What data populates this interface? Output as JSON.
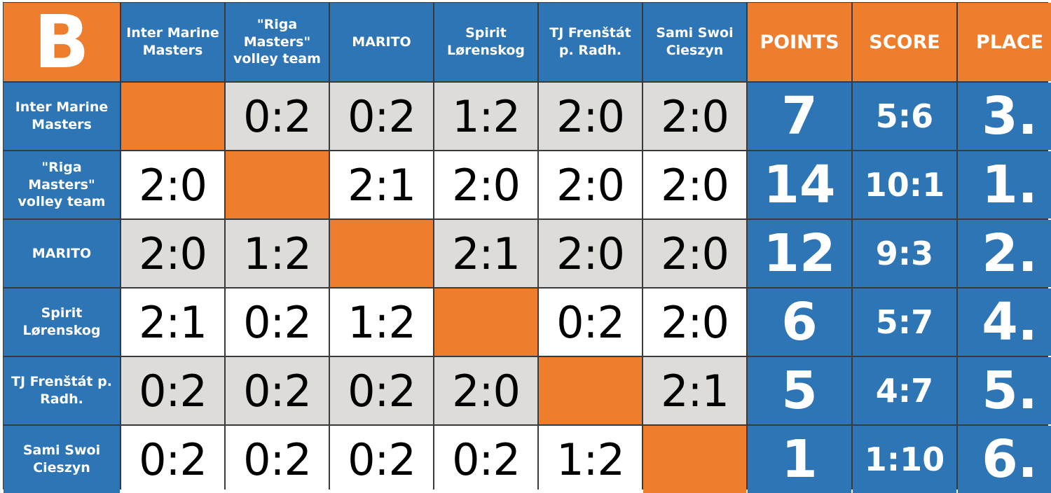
{
  "group": "B",
  "teams": [
    "Inter Marine Masters",
    "\"Riga Masters\" volley team",
    "MARITO",
    "Spirit Lørenskog",
    "TJ Frenštát p. Radh.",
    "Sami Swoi Cieszyn"
  ],
  "header_columns": [
    "Inter Marine Masters",
    "\"Riga Masters\" volley team",
    "MARITO",
    "Spirit Lørenskog",
    "TJ Frenštát p. Radh.",
    "Sami Swoi Cieszyn"
  ],
  "stat_headers": {
    "points": "POINTS",
    "score": "SCORE",
    "place": "PLACE"
  },
  "rows": [
    {
      "team": "Inter Marine Masters",
      "results": [
        "",
        "0:2",
        "0:2",
        "1:2",
        "2:0",
        "2:0"
      ],
      "points": "7",
      "score": "5:6",
      "place": "3."
    },
    {
      "team": "\"Riga Masters\" volley team",
      "results": [
        "2:0",
        "",
        "2:1",
        "2:0",
        "2:0",
        "2:0"
      ],
      "points": "14",
      "score": "10:1",
      "place": "1."
    },
    {
      "team": "MARITO",
      "results": [
        "2:0",
        "1:2",
        "",
        "2:1",
        "2:0",
        "2:0"
      ],
      "points": "12",
      "score": "9:3",
      "place": "2."
    },
    {
      "team": "Spirit Lørenskog",
      "results": [
        "2:1",
        "0:2",
        "1:2",
        "",
        "0:2",
        "2:0"
      ],
      "points": "6",
      "score": "5:7",
      "place": "4."
    },
    {
      "team": "TJ Frenštát p. Radh.",
      "results": [
        "0:2",
        "0:2",
        "0:2",
        "2:0",
        "",
        "2:1"
      ],
      "points": "5",
      "score": "4:7",
      "place": "5."
    },
    {
      "team": "Sami Swoi Cieszyn",
      "results": [
        "0:2",
        "0:2",
        "0:2",
        "0:2",
        "1:2",
        ""
      ],
      "points": "1",
      "score": "1:10",
      "place": "6."
    }
  ],
  "colors": {
    "blue": "#2e75b6",
    "orange": "#ee7e2d",
    "grey": "#dedcd8",
    "white": "#ffffff"
  }
}
